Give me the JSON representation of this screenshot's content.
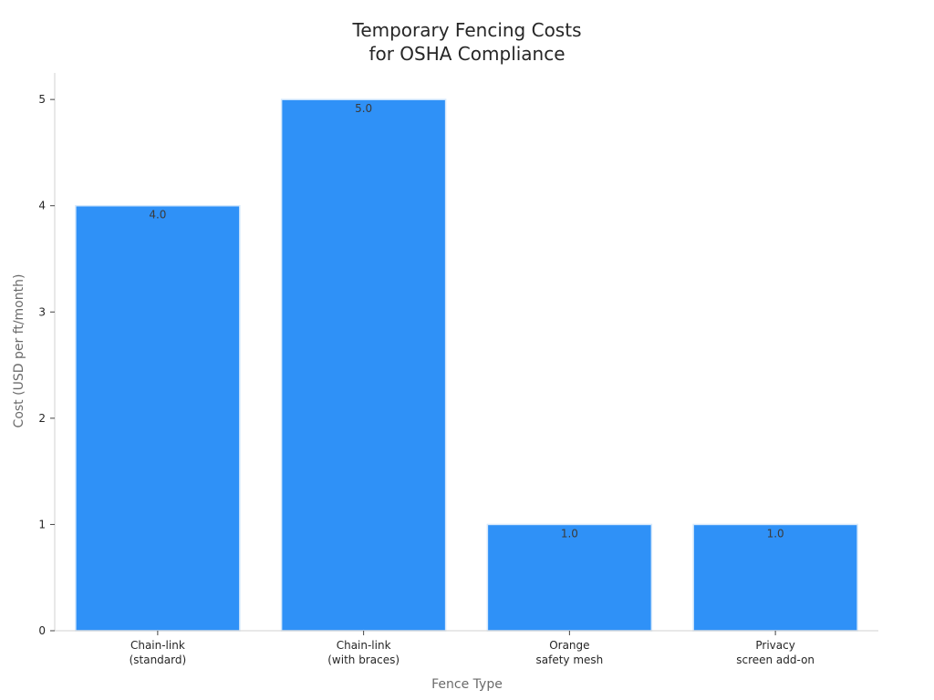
{
  "chart_data": {
    "type": "bar",
    "title_lines": [
      "Temporary Fencing Costs",
      "for OSHA Compliance"
    ],
    "xlabel": "Fence Type",
    "ylabel": "Cost (USD per ft/month)",
    "categories": [
      [
        "Chain-link",
        "(standard)"
      ],
      [
        "Chain-link",
        "(with braces)"
      ],
      [
        "Orange",
        "safety mesh"
      ],
      [
        "Privacy",
        "screen add-on"
      ]
    ],
    "values": [
      4.0,
      5.0,
      1.0,
      1.0
    ],
    "value_labels": [
      "4.0",
      "5.0",
      "1.0",
      "1.0"
    ],
    "yticks": [
      0,
      1,
      2,
      3,
      4,
      5
    ],
    "ylim": [
      0,
      5.25
    ],
    "grid": false,
    "bar_color": "#2f91f7",
    "bar_edge_color": "#d6e9fc"
  }
}
